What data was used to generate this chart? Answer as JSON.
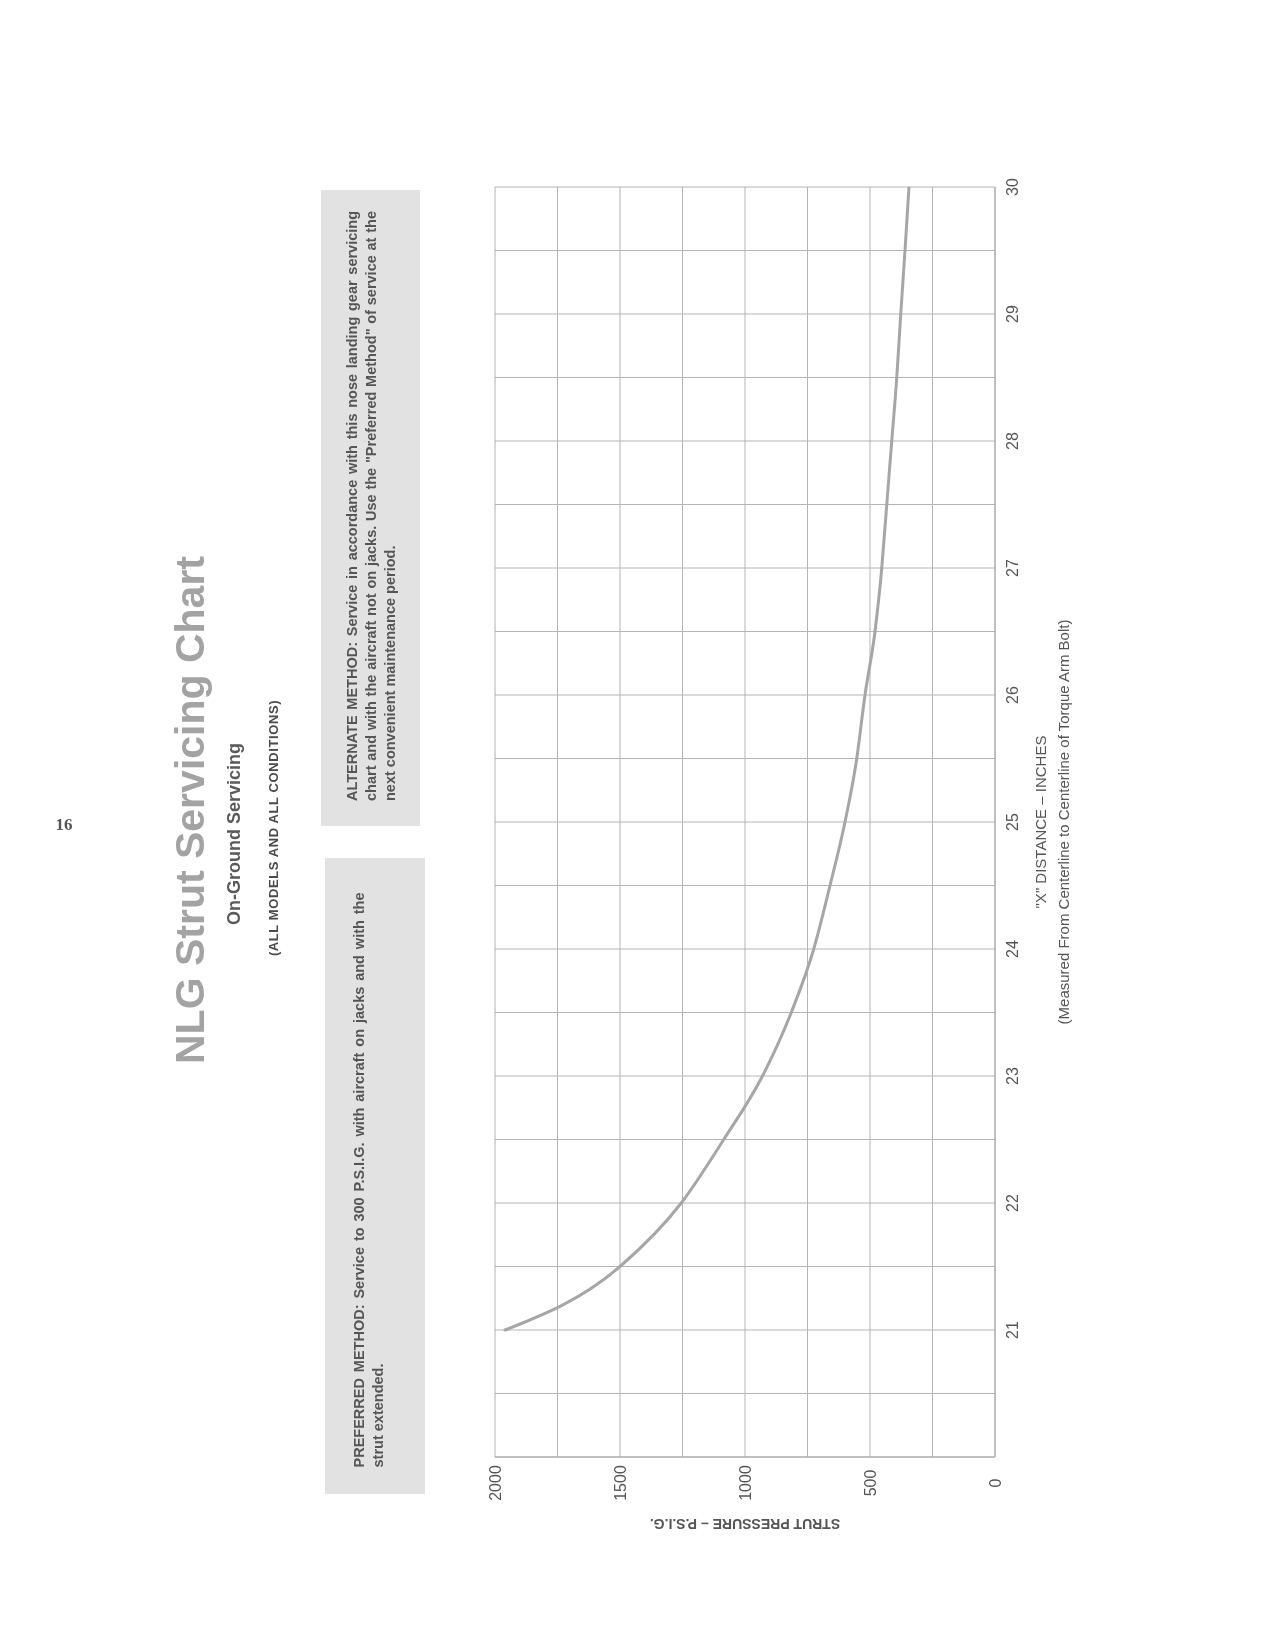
{
  "chart_data": {
    "type": "line",
    "title": "NLG Strut Servicing Chart",
    "subtitle": "On-Ground Servicing",
    "xlabel": "STRUT PRESSURE – P.S.I.G.",
    "ylabel": "\"X\" DISTANCE – INCHES\n(Measured From Centerline to Centerline of Torque Arm Bolt)",
    "annotations": [
      "16",
      "(ALL MODELS AND ALL CONDITIONS)",
      "PREFERRED METHOD: Service to 300 P.S.I.G. with aircraft on jacks and with the strut extended.",
      "ALTERNATE METHOD: Service in accordance with this nose landing gear servicing chart and with the aircraft not on jacks. Use the \"Preferred Method\" of service at the next convenient maintenance period."
    ],
    "x": [
      1960,
      1500,
      1255,
      1085,
      930,
      815,
      725,
      660,
      600,
      553,
      520,
      480,
      453,
      433,
      413,
      393,
      377,
      360,
      344
    ],
    "values": [
      21,
      21.5,
      22,
      22.5,
      23,
      23.5,
      24,
      24.5,
      25,
      25.5,
      26,
      26.5,
      27,
      27.5,
      28,
      28.5,
      29,
      29.5,
      30
    ],
    "color": "#a6a6a6",
    "xlim": [
      2000,
      0
    ],
    "xticks": [
      2000,
      {
        "value": 1750,
        "label": null
      },
      1500,
      {
        "value": 1250,
        "label": null
      },
      1000,
      {
        "value": 750,
        "label": null
      },
      500,
      {
        "value": 250,
        "label": null
      },
      0
    ],
    "ylim": [
      20,
      30
    ],
    "yticks": [
      {
        "value": 20,
        "label": null
      },
      {
        "value": 20.5,
        "label": null
      },
      21,
      {
        "value": 21.5,
        "label": null
      },
      22,
      {
        "value": 22.5,
        "label": null
      },
      23,
      {
        "value": 23.5,
        "label": null
      },
      24,
      {
        "value": 24.5,
        "label": null
      },
      25,
      {
        "value": 25.5,
        "label": null
      },
      26,
      {
        "value": 26.5,
        "label": null
      },
      27,
      {
        "value": 27.5,
        "label": null
      },
      28,
      {
        "value": 28.5,
        "label": null
      },
      29,
      {
        "value": 29.5,
        "label": null
      },
      30
    ],
    "grid": true,
    "marker": "none"
  }
}
